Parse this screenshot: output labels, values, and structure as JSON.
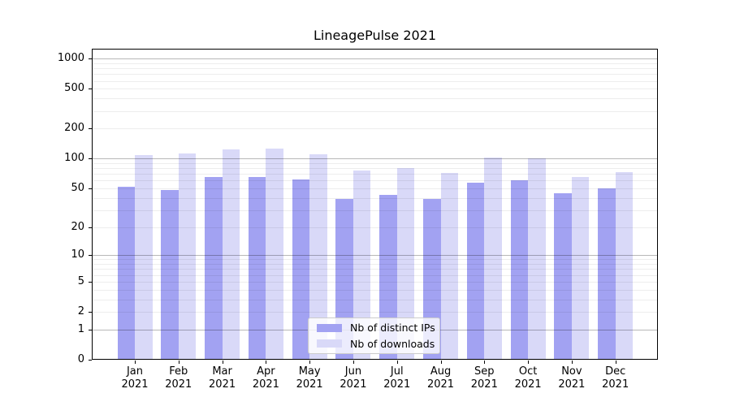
{
  "title": "LineagePulse 2021",
  "chart_data": {
    "type": "bar",
    "title": "LineagePulse 2021",
    "categories": [
      "Jan 2021",
      "Feb 2021",
      "Mar 2021",
      "Apr 2021",
      "May 2021",
      "Jun 2021",
      "Jul 2021",
      "Aug 2021",
      "Sep 2021",
      "Oct 2021",
      "Nov 2021",
      "Dec 2021"
    ],
    "x_axis": {
      "months": [
        "Jan",
        "Feb",
        "Mar",
        "Apr",
        "May",
        "Jun",
        "Jul",
        "Aug",
        "Sep",
        "Oct",
        "Nov",
        "Dec"
      ],
      "year": "2021"
    },
    "y_axis": {
      "scale": "log1p",
      "ticks": [
        0,
        1,
        2,
        5,
        10,
        20,
        50,
        100,
        200,
        500,
        1000
      ],
      "ylim": [
        0,
        1258
      ],
      "major_gridlines": [
        1,
        10,
        100,
        1000
      ],
      "minor_gridlines": [
        2,
        3,
        4,
        5,
        6,
        7,
        8,
        9,
        20,
        30,
        40,
        50,
        60,
        70,
        80,
        90,
        200,
        300,
        400,
        500,
        600,
        700,
        800,
        900
      ]
    },
    "series": [
      {
        "name": "Nb of distinct IPs",
        "color": "#a2a2f2",
        "values": [
          52,
          48,
          65,
          65,
          62,
          39,
          43,
          39,
          57,
          60,
          45,
          50
        ]
      },
      {
        "name": "Nb of downloads",
        "color": "#d9d9f8",
        "values": [
          109,
          113,
          124,
          127,
          110,
          76,
          80,
          72,
          102,
          101,
          65,
          73
        ]
      }
    ],
    "legend": {
      "position": "lower center",
      "items": [
        "Nb of distinct IPs",
        "Nb of downloads"
      ]
    },
    "grid": true
  },
  "colors": {
    "distinct_ips": "#a2a2f2",
    "downloads": "#d9d9f8",
    "grid_major": "rgba(0,0,0,0.28)",
    "grid_minor": "rgba(0,0,0,0.07)",
    "axis": "#000000",
    "text": "#000000",
    "background": "#ffffff",
    "legend_bg": "rgba(255,255,255,0.8)",
    "legend_border": "#cccccc"
  }
}
